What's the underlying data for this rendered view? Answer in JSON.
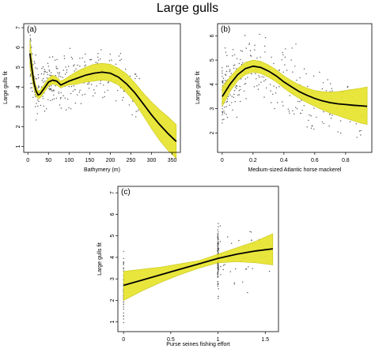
{
  "figure_title": "Large gulls",
  "colors": {
    "band": "#e6e32b",
    "band_edge": "#c9c61a",
    "line": "#000000",
    "points": "#555555"
  },
  "chart_data": [
    {
      "id": "a",
      "panel_label": "(a)",
      "type": "line",
      "xlabel": "Bathymery (m)",
      "ylabel": "Large gulls fit",
      "xlim": [
        -10,
        370
      ],
      "ylim": [
        0.7,
        7.2
      ],
      "xticks": [
        0,
        50,
        100,
        150,
        200,
        250,
        300,
        350
      ],
      "yticks": [
        1,
        2,
        3,
        4,
        5,
        6,
        7
      ],
      "grid": false,
      "series": [
        {
          "x": [
            5,
            10,
            15,
            20,
            25,
            30,
            40,
            50,
            60,
            70,
            80,
            90,
            100,
            120,
            140,
            160,
            180,
            200,
            220,
            240,
            260,
            280,
            300,
            320,
            340,
            360
          ],
          "y": [
            5.7,
            4.9,
            4.2,
            3.8,
            3.6,
            3.65,
            3.95,
            4.25,
            4.35,
            4.3,
            4.1,
            4.2,
            4.3,
            4.45,
            4.6,
            4.7,
            4.75,
            4.7,
            4.5,
            4.15,
            3.7,
            3.15,
            2.6,
            2.1,
            1.65,
            1.25
          ],
          "lower": [
            5.0,
            4.4,
            3.9,
            3.55,
            3.4,
            3.45,
            3.75,
            4.05,
            4.15,
            4.1,
            3.95,
            4.05,
            4.1,
            4.15,
            4.25,
            4.3,
            4.35,
            4.3,
            4.1,
            3.7,
            3.2,
            2.55,
            1.9,
            1.3,
            0.8,
            0.4
          ],
          "upper": [
            6.4,
            5.4,
            4.5,
            4.05,
            3.8,
            3.85,
            4.15,
            4.45,
            4.6,
            4.5,
            4.3,
            4.4,
            4.55,
            4.8,
            5.0,
            5.15,
            5.2,
            5.15,
            4.95,
            4.65,
            4.2,
            3.7,
            3.25,
            2.85,
            2.5,
            2.1
          ]
        }
      ]
    },
    {
      "id": "b",
      "panel_label": "(b)",
      "type": "line",
      "xlabel": "Medium-sized Atlantic horse mackerel",
      "ylabel": "Large gulls fit",
      "xlim": [
        -0.03,
        0.97
      ],
      "ylim": [
        1.2,
        6.5
      ],
      "xticks": [
        0.0,
        0.2,
        0.4,
        0.6,
        0.8
      ],
      "yticks": [
        2,
        3,
        4,
        5,
        6
      ],
      "grid": false,
      "series": [
        {
          "x": [
            0.0,
            0.05,
            0.1,
            0.15,
            0.2,
            0.25,
            0.3,
            0.35,
            0.4,
            0.45,
            0.5,
            0.55,
            0.6,
            0.65,
            0.7,
            0.75,
            0.8,
            0.85,
            0.9,
            0.94
          ],
          "y": [
            3.5,
            4.0,
            4.4,
            4.65,
            4.75,
            4.7,
            4.55,
            4.35,
            4.1,
            3.9,
            3.7,
            3.55,
            3.42,
            3.32,
            3.25,
            3.2,
            3.17,
            3.14,
            3.12,
            3.1
          ],
          "lower": [
            3.1,
            3.7,
            4.15,
            4.4,
            4.5,
            4.45,
            4.3,
            4.1,
            3.85,
            3.62,
            3.42,
            3.25,
            3.1,
            2.95,
            2.82,
            2.72,
            2.6,
            2.5,
            2.4,
            2.35
          ],
          "upper": [
            3.9,
            4.3,
            4.65,
            4.9,
            5.0,
            4.95,
            4.8,
            4.6,
            4.35,
            4.15,
            3.98,
            3.85,
            3.75,
            3.7,
            3.68,
            3.7,
            3.75,
            3.8,
            3.85,
            3.9
          ]
        }
      ]
    },
    {
      "id": "c",
      "panel_label": "(c)",
      "type": "line",
      "xlabel": "Purse seines fishing effort",
      "ylabel": "Large gulls fit",
      "xlim": [
        -0.06,
        1.64
      ],
      "ylim": [
        0.55,
        7.3
      ],
      "xticks": [
        0.0,
        0.5,
        1.0,
        1.5
      ],
      "yticks": [
        1,
        2,
        3,
        4,
        5,
        6,
        7
      ],
      "grid": false,
      "series": [
        {
          "x": [
            0.0,
            0.2,
            0.4,
            0.6,
            0.8,
            1.0,
            1.2,
            1.4,
            1.58
          ],
          "y": [
            2.7,
            2.95,
            3.2,
            3.45,
            3.7,
            3.95,
            4.15,
            4.3,
            4.4
          ],
          "lower": [
            2.0,
            2.45,
            2.85,
            3.2,
            3.5,
            3.75,
            3.8,
            3.75,
            3.65
          ],
          "upper": [
            3.35,
            3.45,
            3.55,
            3.7,
            3.85,
            4.15,
            4.45,
            4.75,
            5.1
          ]
        }
      ]
    }
  ]
}
